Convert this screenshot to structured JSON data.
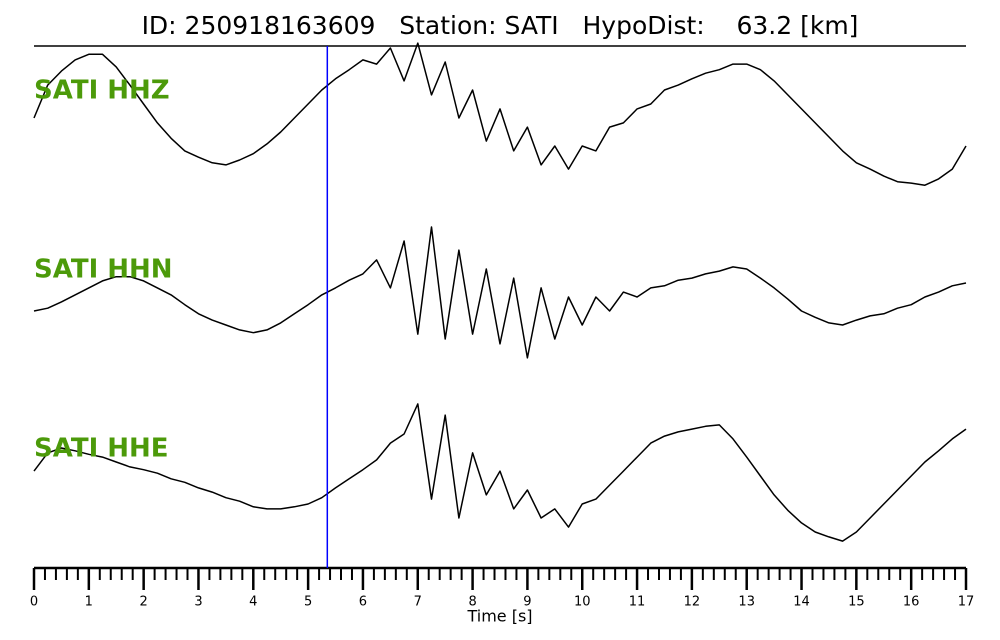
{
  "chart_data": {
    "type": "seismogram",
    "title": "ID: 250918163609   Station: SATI   HypoDist:    63.2 [km]",
    "xlabel": "Time [s]",
    "xlim": [
      0,
      17
    ],
    "xticks": [
      0,
      1,
      2,
      3,
      4,
      5,
      6,
      7,
      8,
      9,
      10,
      11,
      12,
      13,
      14,
      15,
      16,
      17
    ],
    "xminorticks": [
      0.2,
      0.4,
      0.6,
      0.8,
      1.2,
      1.4,
      1.6,
      1.8,
      2.2,
      2.4,
      2.6,
      2.8,
      3.2,
      3.4,
      3.6,
      3.8,
      4.2,
      4.4,
      4.6,
      4.8,
      5.2,
      5.4,
      5.6,
      5.8,
      6.2,
      6.4,
      6.6,
      6.8,
      7.2,
      7.4,
      7.6,
      7.8,
      8.2,
      8.4,
      8.6,
      8.8,
      9.2,
      9.4,
      9.6,
      9.8,
      10.2,
      10.4,
      10.6,
      10.8,
      11.2,
      11.4,
      11.6,
      11.8,
      12.2,
      12.4,
      12.6,
      12.8,
      13.2,
      13.4,
      13.6,
      13.8,
      14.2,
      14.4,
      14.6,
      14.8,
      15.2,
      15.4,
      15.6,
      15.8,
      16.2,
      16.4,
      16.6,
      16.8
    ],
    "ylim": [
      -1,
      1
    ],
    "pick": {
      "x": 5.35,
      "color": "#0000ff"
    },
    "label_color": "#4c9a0a",
    "x": [
      0,
      0.25,
      0.5,
      0.75,
      1,
      1.25,
      1.5,
      1.75,
      2,
      2.25,
      2.5,
      2.75,
      3,
      3.25,
      3.5,
      3.75,
      4,
      4.25,
      4.5,
      4.75,
      5,
      5.25,
      5.5,
      5.75,
      6,
      6.25,
      6.5,
      6.75,
      7,
      7.25,
      7.5,
      7.75,
      8,
      8.25,
      8.5,
      8.75,
      9,
      9.25,
      9.5,
      9.75,
      10,
      10.25,
      10.5,
      10.75,
      11,
      11.25,
      11.5,
      11.75,
      12,
      12.25,
      12.5,
      12.75,
      13,
      13.25,
      13.5,
      13.75,
      14,
      14.25,
      14.5,
      14.75,
      15,
      15.25,
      15.5,
      15.75,
      16,
      16.25,
      16.5,
      16.75,
      17
    ],
    "series": [
      {
        "name": "SATI HHZ",
        "color": "#000000",
        "values": [
          0,
          0.47,
          0.67,
          0.83,
          0.91,
          0.91,
          0.73,
          0.47,
          0.2,
          -0.07,
          -0.29,
          -0.47,
          -0.56,
          -0.64,
          -0.67,
          -0.6,
          -0.51,
          -0.37,
          -0.2,
          0,
          0.2,
          0.4,
          0.56,
          0.69,
          0.83,
          0.77,
          1.0,
          0.53,
          1.07,
          0.33,
          0.8,
          0,
          0.4,
          -0.33,
          0.13,
          -0.47,
          -0.13,
          -0.67,
          -0.4,
          -0.73,
          -0.4,
          -0.47,
          -0.13,
          -0.07,
          0.13,
          0.2,
          0.4,
          0.47,
          0.56,
          0.64,
          0.69,
          0.77,
          0.77,
          0.69,
          0.53,
          0.33,
          0.13,
          -0.07,
          -0.27,
          -0.47,
          -0.64,
          -0.73,
          -0.83,
          -0.91,
          -0.93,
          -0.96,
          -0.87,
          -0.73,
          -0.4
        ]
      },
      {
        "name": "SATI HHN",
        "color": "#000000",
        "values": [
          -0.2,
          -0.16,
          -0.07,
          0.03,
          0.13,
          0.23,
          0.29,
          0.29,
          0.23,
          0.13,
          0.03,
          -0.11,
          -0.24,
          -0.33,
          -0.4,
          -0.47,
          -0.51,
          -0.47,
          -0.37,
          -0.24,
          -0.11,
          0.03,
          0.13,
          0.24,
          0.33,
          0.53,
          0.13,
          0.8,
          -0.53,
          1.0,
          -0.6,
          0.67,
          -0.53,
          0.4,
          -0.67,
          0.27,
          -0.87,
          0.13,
          -0.6,
          0,
          -0.4,
          0,
          -0.2,
          0.07,
          0,
          0.13,
          0.16,
          0.24,
          0.27,
          0.33,
          0.37,
          0.43,
          0.4,
          0.27,
          0.13,
          -0.03,
          -0.2,
          -0.29,
          -0.37,
          -0.4,
          -0.33,
          -0.27,
          -0.24,
          -0.16,
          -0.11,
          0,
          0.07,
          0.16,
          0.2
        ]
      },
      {
        "name": "SATI HHE",
        "color": "#000000",
        "values": [
          0.07,
          0.33,
          0.4,
          0.36,
          0.31,
          0.27,
          0.2,
          0.13,
          0.09,
          0.04,
          -0.04,
          -0.09,
          -0.17,
          -0.23,
          -0.31,
          -0.36,
          -0.44,
          -0.47,
          -0.47,
          -0.44,
          -0.4,
          -0.31,
          -0.17,
          -0.04,
          0.09,
          0.23,
          0.47,
          0.6,
          1.03,
          -0.33,
          0.87,
          -0.6,
          0.33,
          -0.27,
          0.07,
          -0.47,
          -0.2,
          -0.6,
          -0.47,
          -0.73,
          -0.4,
          -0.33,
          -0.13,
          0.07,
          0.27,
          0.47,
          0.57,
          0.63,
          0.67,
          0.71,
          0.73,
          0.53,
          0.27,
          0,
          -0.27,
          -0.49,
          -0.67,
          -0.8,
          -0.87,
          -0.93,
          -0.8,
          -0.6,
          -0.4,
          -0.2,
          0,
          0.2,
          0.36,
          0.53,
          0.67
        ]
      }
    ]
  }
}
